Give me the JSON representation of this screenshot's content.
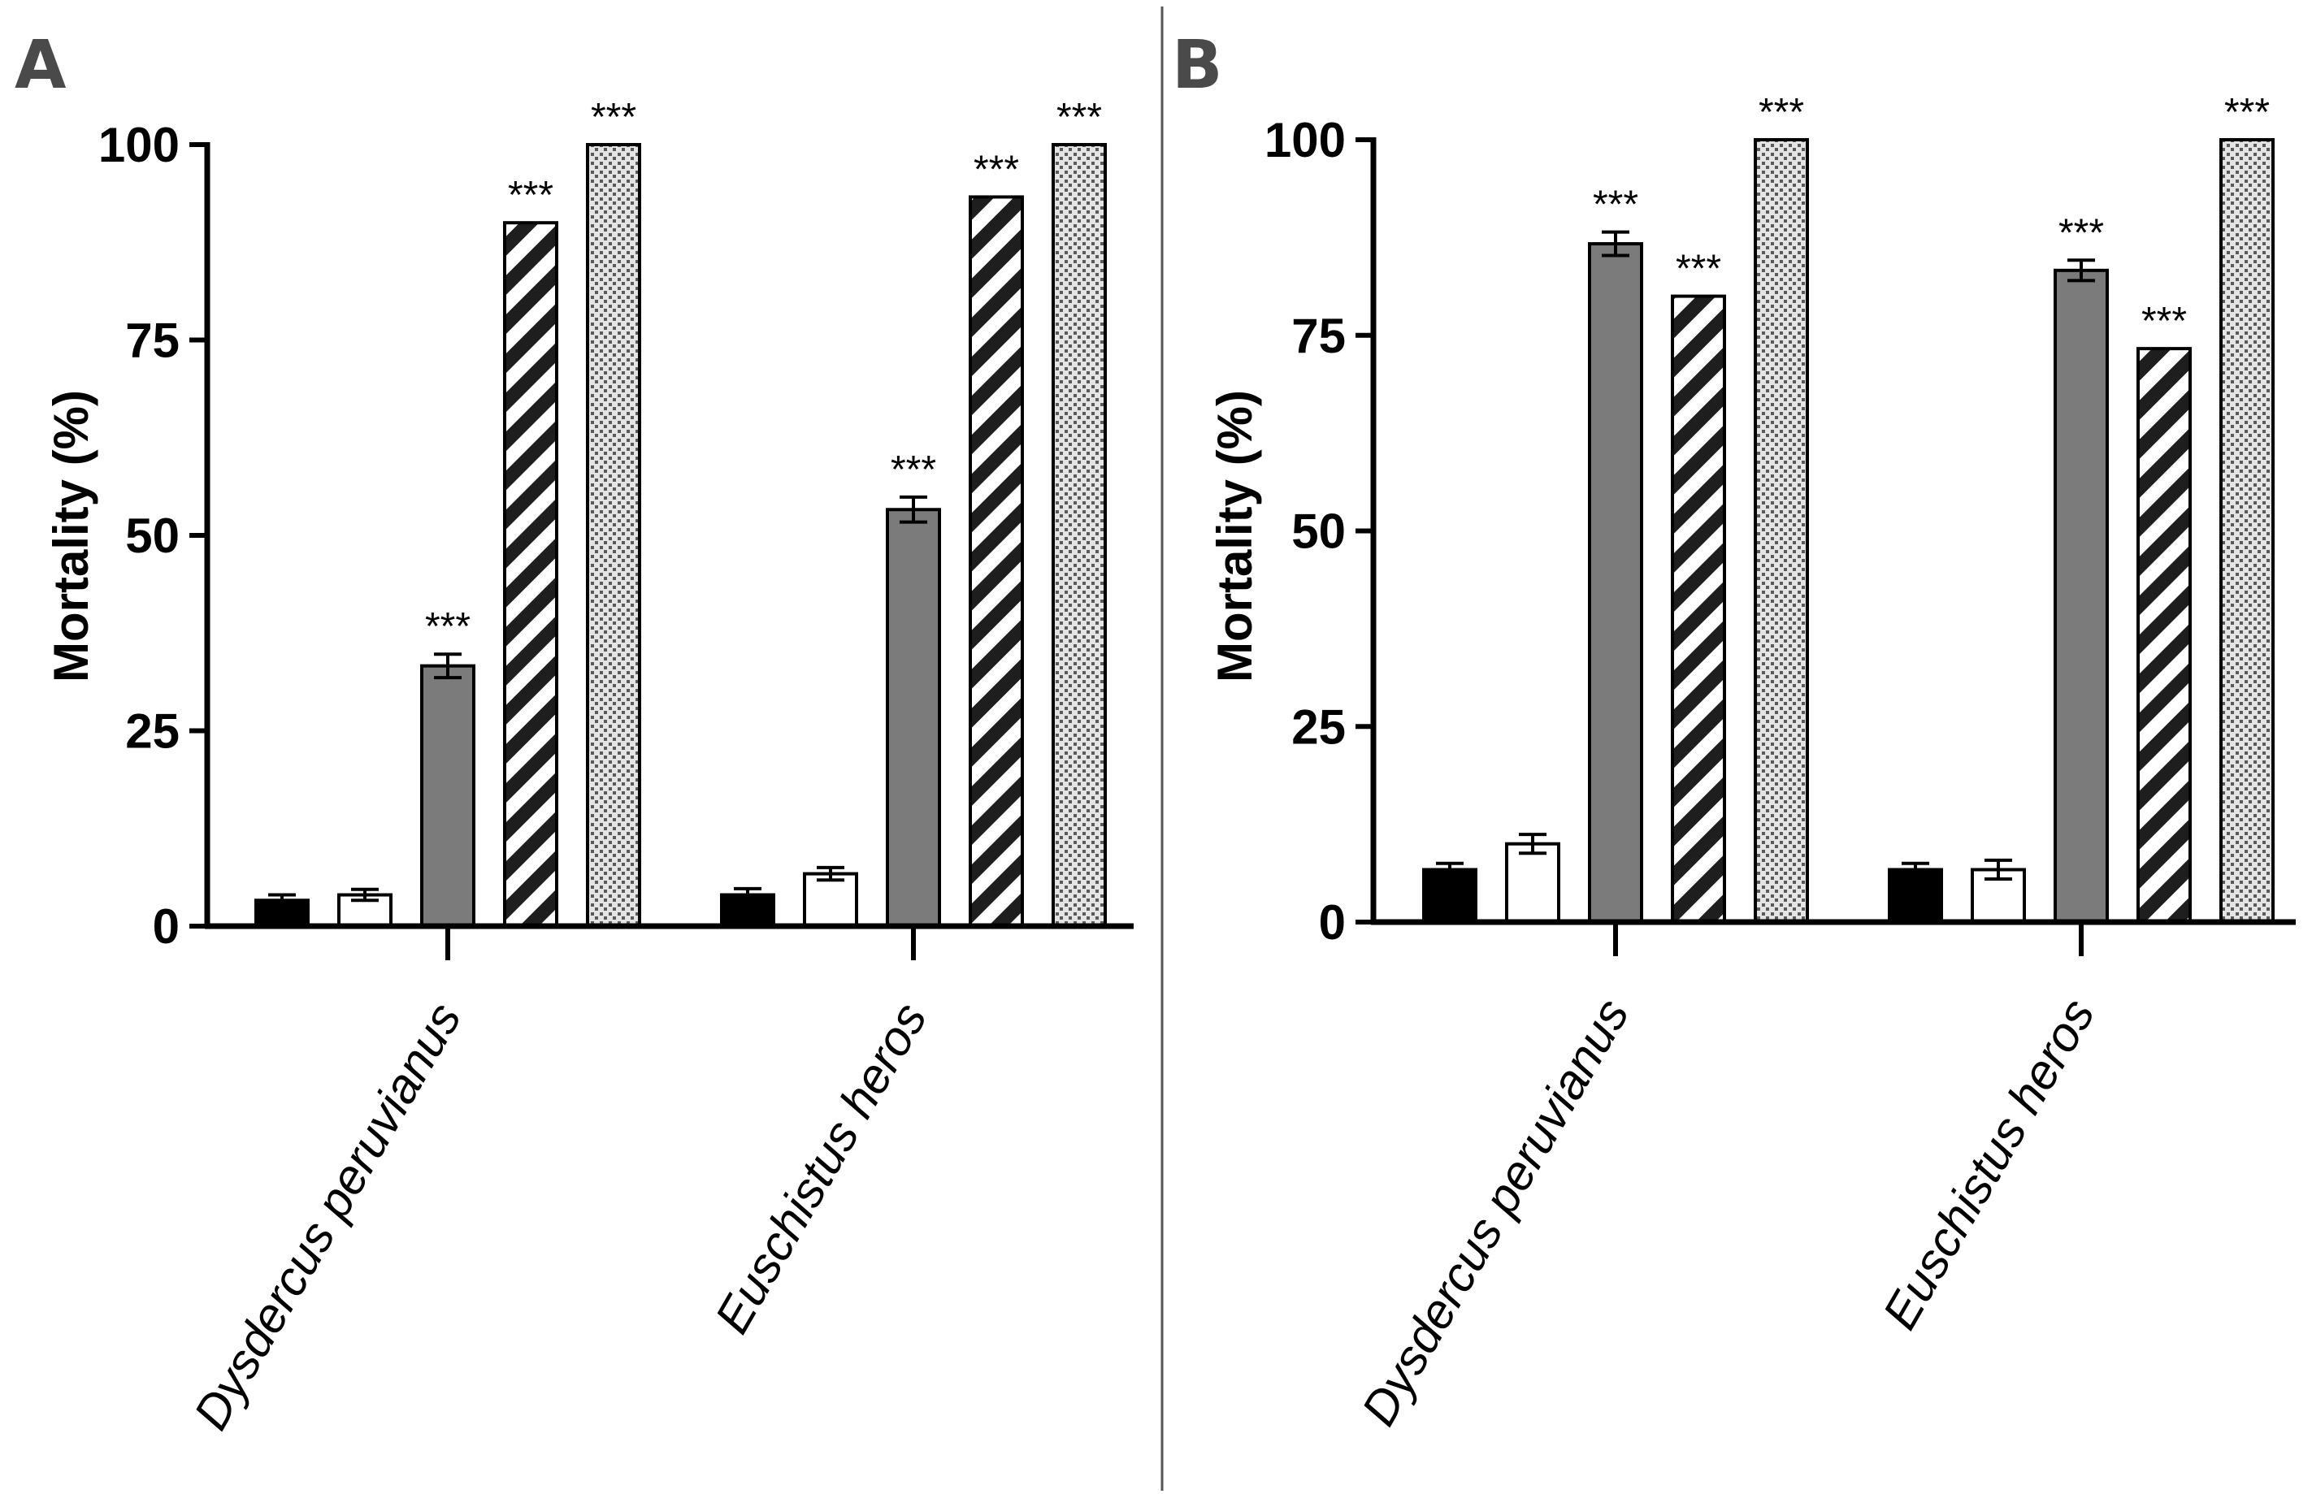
{
  "colors": {
    "black_fill": "#000000",
    "white_fill": "#ffffff",
    "gray_fill": "#7b7b7b",
    "stripe_color": "#1e1e1e",
    "dots_bg": "#e4e4e4",
    "dots_fg": "#5a5a5a",
    "axis": "#000000",
    "divider": "#555555"
  },
  "chart_data": [
    {
      "panel": "A",
      "type": "bar",
      "ylabel": "Mortality (%)",
      "xlabel": "",
      "ylim": [
        0,
        100
      ],
      "yticks": [
        "0",
        "25",
        "50",
        "75",
        "100"
      ],
      "categories": [
        "Dysdercus peruvianus",
        "Euschistus heros"
      ],
      "series": [
        {
          "pattern": "black",
          "values": [
            3.3,
            4.0
          ],
          "errors": [
            0.7,
            0.8
          ],
          "sig": [
            "",
            ""
          ]
        },
        {
          "pattern": "white",
          "values": [
            4.0,
            6.7
          ],
          "errors": [
            0.7,
            0.8
          ],
          "sig": [
            "",
            ""
          ]
        },
        {
          "pattern": "gray",
          "values": [
            33.3,
            53.3
          ],
          "errors": [
            1.5,
            1.6
          ],
          "sig": [
            "***",
            "***"
          ]
        },
        {
          "pattern": "stripes",
          "values": [
            90.0,
            93.3
          ],
          "errors": [
            0,
            0
          ],
          "sig": [
            "***",
            "***"
          ]
        },
        {
          "pattern": "dots",
          "values": [
            100,
            100
          ],
          "errors": [
            0,
            0
          ],
          "sig": [
            "***",
            "***"
          ]
        }
      ],
      "grid": false,
      "legend": "none"
    },
    {
      "panel": "B",
      "type": "bar",
      "ylabel": "Mortality (%)",
      "xlabel": "",
      "ylim": [
        0,
        100
      ],
      "yticks": [
        "0",
        "25",
        "50",
        "75",
        "100"
      ],
      "categories": [
        "Dysdercus peruvianus",
        "Euschistus heros"
      ],
      "series": [
        {
          "pattern": "black",
          "values": [
            6.7,
            6.7
          ],
          "errors": [
            0.8,
            0.8
          ],
          "sig": [
            "",
            ""
          ]
        },
        {
          "pattern": "white",
          "values": [
            10.0,
            6.7
          ],
          "errors": [
            1.2,
            1.2
          ],
          "sig": [
            "",
            ""
          ]
        },
        {
          "pattern": "gray",
          "values": [
            86.7,
            83.3
          ],
          "errors": [
            1.5,
            1.3
          ],
          "sig": [
            "***",
            "***"
          ]
        },
        {
          "pattern": "stripes",
          "values": [
            80.0,
            73.3
          ],
          "errors": [
            0,
            0
          ],
          "sig": [
            "***",
            "***"
          ]
        },
        {
          "pattern": "dots",
          "values": [
            100,
            100
          ],
          "errors": [
            0,
            0
          ],
          "sig": [
            "***",
            "***"
          ]
        }
      ],
      "grid": false,
      "legend": "none"
    }
  ]
}
